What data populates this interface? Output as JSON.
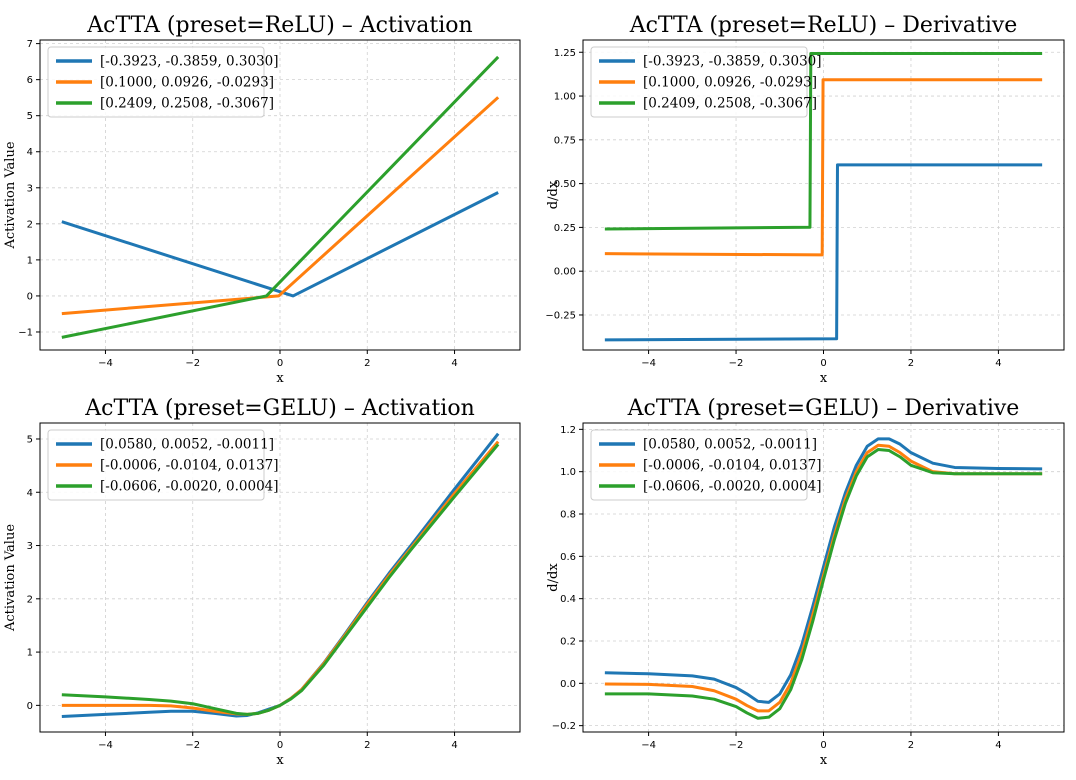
{
  "colors": [
    "#1f77b4",
    "#ff7f0e",
    "#2ca02c"
  ],
  "chart_data": [
    {
      "type": "line",
      "title": "AcTTA (preset=ReLU) – Activation",
      "xlabel": "x",
      "ylabel": "Activation Value",
      "xlim": [
        -5.5,
        5.5
      ],
      "ylim": [
        -1.5,
        7.1
      ],
      "xticks": [
        -4,
        -2,
        0,
        2,
        4
      ],
      "xtick_labels": [
        "−4",
        "−2",
        "0",
        "2",
        "4"
      ],
      "yticks": [
        -1,
        0,
        1,
        2,
        3,
        4,
        5,
        6,
        7
      ],
      "ytick_labels": [
        "−1",
        "0",
        "1",
        "2",
        "3",
        "4",
        "5",
        "6",
        "7"
      ],
      "legend": "top-left",
      "series": [
        {
          "name": "[-0.3923, -0.3859, 0.3030]",
          "x": [
            -5,
            0.3,
            5
          ],
          "y": [
            2.06,
            0.0,
            2.87
          ]
        },
        {
          "name": "[0.1000, 0.0926, -0.0293]",
          "x": [
            -5,
            -0.03,
            5
          ],
          "y": [
            -0.49,
            0.0,
            5.51
          ]
        },
        {
          "name": "[0.2409, 0.2508, -0.3067]",
          "x": [
            -5,
            -0.31,
            5
          ],
          "y": [
            -1.15,
            0.0,
            6.63
          ]
        }
      ]
    },
    {
      "type": "line",
      "title": "AcTTA (preset=ReLU) – Derivative",
      "xlabel": "x",
      "ylabel": "d/dx",
      "xlim": [
        -5.5,
        5.5
      ],
      "ylim": [
        -0.45,
        1.32
      ],
      "xticks": [
        -4,
        -2,
        0,
        2,
        4
      ],
      "xtick_labels": [
        "−4",
        "−2",
        "0",
        "2",
        "4"
      ],
      "yticks": [
        -0.25,
        0,
        0.25,
        0.5,
        0.75,
        1.0,
        1.25
      ],
      "ytick_labels": [
        "−0.25",
        "0.00",
        "0.25",
        "0.50",
        "0.75",
        "1.00",
        "1.25"
      ],
      "legend": "top-left",
      "series": [
        {
          "name": "[-0.3923, -0.3859, 0.3030]",
          "x": [
            -5,
            0.3,
            0.32,
            5
          ],
          "y": [
            -0.392,
            -0.386,
            0.607,
            0.607
          ]
        },
        {
          "name": "[0.1000, 0.0926, -0.0293]",
          "x": [
            -5,
            -0.03,
            -0.01,
            5
          ],
          "y": [
            0.1,
            0.093,
            1.093,
            1.093
          ]
        },
        {
          "name": "[0.2409, 0.2508, -0.3067]",
          "x": [
            -5,
            -0.31,
            -0.29,
            5
          ],
          "y": [
            0.241,
            0.251,
            1.243,
            1.243
          ]
        }
      ]
    },
    {
      "type": "line",
      "title": "AcTTA (preset=GELU) – Activation",
      "xlabel": "x",
      "ylabel": "Activation Value",
      "xlim": [
        -5.5,
        5.5
      ],
      "ylim": [
        -0.5,
        5.3
      ],
      "xticks": [
        -4,
        -2,
        0,
        2,
        4
      ],
      "xtick_labels": [
        "−4",
        "−2",
        "0",
        "2",
        "4"
      ],
      "yticks": [
        0,
        1,
        2,
        3,
        4,
        5
      ],
      "ytick_labels": [
        "0",
        "1",
        "2",
        "3",
        "4",
        "5"
      ],
      "legend": "top-left",
      "series": [
        {
          "name": "[0.0580, 0.0052, -0.0011]",
          "x": [
            -5,
            -4,
            -3,
            -2.5,
            -2,
            -1.5,
            -1,
            -0.75,
            -0.5,
            -0.25,
            0,
            0.25,
            0.5,
            1,
            1.5,
            2,
            2.5,
            3,
            4,
            5
          ],
          "y": [
            -0.21,
            -0.17,
            -0.13,
            -0.11,
            -0.11,
            -0.15,
            -0.2,
            -0.19,
            -0.14,
            -0.07,
            0.0,
            0.13,
            0.3,
            0.79,
            1.35,
            1.93,
            2.48,
            3.0,
            4.06,
            5.1
          ]
        },
        {
          "name": "[-0.0006, -0.0104, 0.0137]",
          "x": [
            -5,
            -4,
            -3,
            -2.5,
            -2,
            -1.5,
            -1,
            -0.75,
            -0.5,
            -0.25,
            0,
            0.25,
            0.5,
            1,
            1.5,
            2,
            2.5,
            3,
            4,
            5
          ],
          "y": [
            0.0,
            0.0,
            0.0,
            -0.01,
            -0.05,
            -0.11,
            -0.16,
            -0.17,
            -0.15,
            -0.09,
            0.0,
            0.13,
            0.3,
            0.78,
            1.33,
            1.9,
            2.44,
            2.95,
            3.98,
            4.95
          ]
        },
        {
          "name": "[-0.0606, -0.0020, 0.0004]",
          "x": [
            -5,
            -4,
            -3,
            -2.5,
            -2,
            -1.5,
            -1,
            -0.75,
            -0.5,
            -0.25,
            0,
            0.25,
            0.5,
            1,
            1.5,
            2,
            2.5,
            3,
            4,
            5
          ],
          "y": [
            0.2,
            0.16,
            0.11,
            0.08,
            0.03,
            -0.06,
            -0.15,
            -0.17,
            -0.15,
            -0.09,
            0.0,
            0.12,
            0.28,
            0.75,
            1.3,
            1.85,
            2.4,
            2.92,
            3.92,
            4.9
          ]
        }
      ]
    },
    {
      "type": "line",
      "title": "AcTTA (preset=GELU) – Derivative",
      "xlabel": "x",
      "ylabel": "d/dx",
      "xlim": [
        -5.5,
        5.5
      ],
      "ylim": [
        -0.23,
        1.23
      ],
      "xticks": [
        -4,
        -2,
        0,
        2,
        4
      ],
      "xtick_labels": [
        "−4",
        "−2",
        "0",
        "2",
        "4"
      ],
      "yticks": [
        -0.2,
        0,
        0.2,
        0.4,
        0.6,
        0.8,
        1.0,
        1.2
      ],
      "ytick_labels": [
        "−0.2",
        "0.0",
        "0.2",
        "0.4",
        "0.6",
        "0.8",
        "1.0",
        "1.2"
      ],
      "legend": "top-left",
      "series": [
        {
          "name": "[0.0580, 0.0052, -0.0011]",
          "x": [
            -5,
            -4,
            -3,
            -2.5,
            -2,
            -1.75,
            -1.5,
            -1.25,
            -1,
            -0.75,
            -0.5,
            -0.25,
            0,
            0.25,
            0.5,
            0.75,
            1,
            1.25,
            1.5,
            1.75,
            2,
            2.5,
            3,
            4,
            5
          ],
          "y": [
            0.05,
            0.045,
            0.035,
            0.02,
            -0.02,
            -0.05,
            -0.085,
            -0.09,
            -0.05,
            0.04,
            0.18,
            0.36,
            0.55,
            0.74,
            0.9,
            1.03,
            1.12,
            1.155,
            1.155,
            1.13,
            1.09,
            1.04,
            1.02,
            1.015,
            1.013
          ]
        },
        {
          "name": "[-0.0006, -0.0104, 0.0137]",
          "x": [
            -5,
            -4,
            -3,
            -2.5,
            -2,
            -1.75,
            -1.5,
            -1.25,
            -1,
            -0.75,
            -0.5,
            -0.25,
            0,
            0.25,
            0.5,
            0.75,
            1,
            1.25,
            1.5,
            1.75,
            2,
            2.5,
            3,
            4,
            5
          ],
          "y": [
            -0.003,
            -0.005,
            -0.015,
            -0.035,
            -0.075,
            -0.105,
            -0.13,
            -0.13,
            -0.09,
            0.0,
            0.14,
            0.32,
            0.51,
            0.7,
            0.87,
            1.0,
            1.09,
            1.125,
            1.12,
            1.09,
            1.05,
            1.0,
            0.99,
            0.99,
            0.99
          ]
        },
        {
          "name": "[-0.0606, -0.0020, 0.0004]",
          "x": [
            -5,
            -4,
            -3,
            -2.5,
            -2,
            -1.75,
            -1.5,
            -1.25,
            -1,
            -0.75,
            -0.5,
            -0.25,
            0,
            0.25,
            0.5,
            0.75,
            1,
            1.25,
            1.5,
            1.75,
            2,
            2.5,
            3,
            4,
            5
          ],
          "y": [
            -0.05,
            -0.05,
            -0.06,
            -0.075,
            -0.11,
            -0.14,
            -0.165,
            -0.16,
            -0.12,
            -0.03,
            0.11,
            0.29,
            0.49,
            0.68,
            0.85,
            0.98,
            1.07,
            1.105,
            1.1,
            1.07,
            1.03,
            0.995,
            0.99,
            0.99,
            0.99
          ]
        }
      ]
    }
  ]
}
